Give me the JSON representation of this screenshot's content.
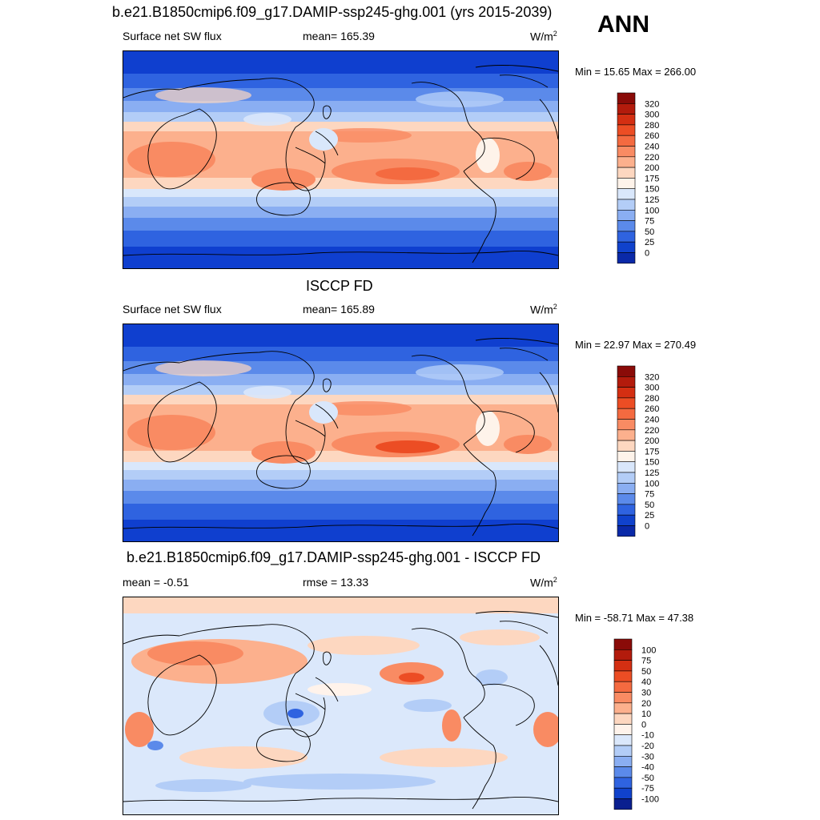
{
  "page": {
    "season": "ANN"
  },
  "panels": [
    {
      "title": "b.e21.B1850cmip6.f09_g17.DAMIP-ssp245-ghg.001 (yrs 2015-2039)",
      "left": "Surface net SW flux",
      "mid": "mean= 165.39",
      "unit_base": "W/m",
      "unit_exp": "2",
      "minmax": "Min =  15.65 Max = 266.00",
      "kind": "abs",
      "colorbar": {
        "labels": [
          "320",
          "300",
          "280",
          "260",
          "240",
          "220",
          "200",
          "175",
          "150",
          "125",
          "100",
          "75",
          "50",
          "25",
          "0"
        ],
        "colors": [
          "#8a0b08",
          "#b31b0c",
          "#d42f12",
          "#ec4d24",
          "#f46a40",
          "#f98b63",
          "#fcb08d",
          "#fdd7c0",
          "#fef3ea",
          "#d9e7fb",
          "#b3cdf7",
          "#8aaef2",
          "#5b8aea",
          "#2f63e0",
          "#1042cc",
          "#0a29a8"
        ]
      }
    },
    {
      "title": "ISCCP FD",
      "left": "Surface net SW flux",
      "mid": "mean= 165.89",
      "unit_base": "W/m",
      "unit_exp": "2",
      "minmax": "Min =  22.97 Max = 270.49",
      "kind": "abs",
      "colorbar": {
        "labels": [
          "320",
          "300",
          "280",
          "260",
          "240",
          "220",
          "200",
          "175",
          "150",
          "125",
          "100",
          "75",
          "50",
          "25",
          "0"
        ],
        "colors": [
          "#8a0b08",
          "#b31b0c",
          "#d42f12",
          "#ec4d24",
          "#f46a40",
          "#f98b63",
          "#fcb08d",
          "#fdd7c0",
          "#fef3ea",
          "#d9e7fb",
          "#b3cdf7",
          "#8aaef2",
          "#5b8aea",
          "#2f63e0",
          "#1042cc",
          "#0a29a8"
        ]
      }
    },
    {
      "title": "b.e21.B1850cmip6.f09_g17.DAMIP-ssp245-ghg.001 - ISCCP FD",
      "left": "mean =  -0.51",
      "mid": "rmse =  13.33",
      "unit_base": "W/m",
      "unit_exp": "2",
      "minmax": "Min = -58.71 Max =  47.38",
      "kind": "diff",
      "colorbar": {
        "labels": [
          "100",
          "75",
          "50",
          "40",
          "30",
          "20",
          "10",
          "0",
          "-10",
          "-20",
          "-30",
          "-40",
          "-50",
          "-75",
          "-100"
        ],
        "colors": [
          "#8a0b08",
          "#b31b0c",
          "#d42f12",
          "#ec4d24",
          "#f46a40",
          "#f98b63",
          "#fcb08d",
          "#fdd7c0",
          "#fff3eb",
          "#dbe8fb",
          "#b3cdf7",
          "#8aaef2",
          "#5b8aea",
          "#2f63e0",
          "#1042cc",
          "#0a1f8f"
        ]
      }
    }
  ]
}
